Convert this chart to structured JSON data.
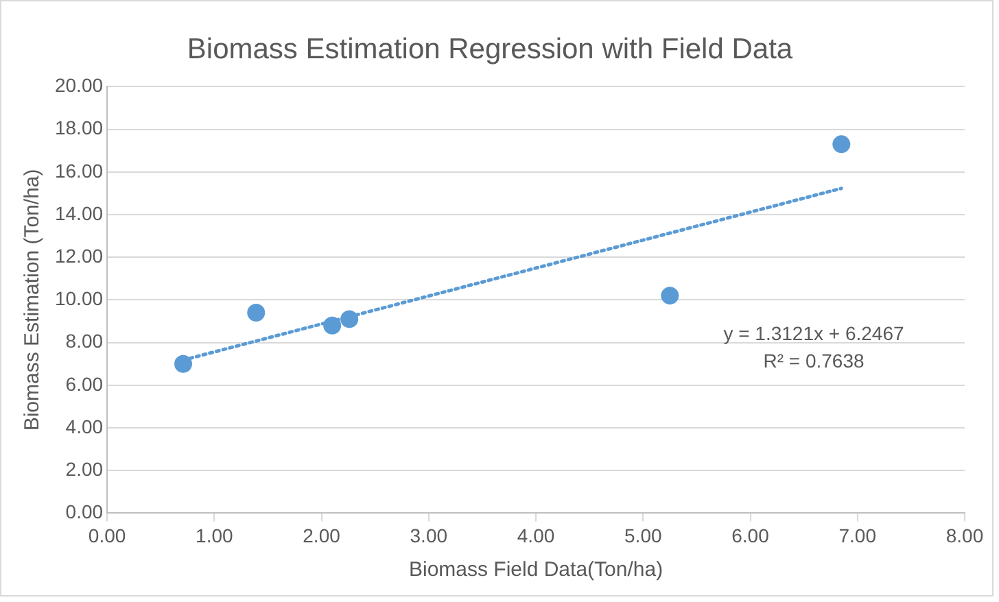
{
  "chart_data": {
    "type": "scatter",
    "title": "Biomass Estimation Regression with Field Data",
    "xlabel": "Biomass Field Data(Ton/ha)",
    "ylabel": "Biomass Estimation (Ton/ha)",
    "series": [
      {
        "color": "#5b9bd5",
        "x": [
          0.71,
          1.39,
          2.1,
          2.26,
          5.25,
          6.85
        ],
        "values": [
          7.0,
          9.4,
          8.8,
          9.1,
          10.2,
          17.3
        ],
        "marker": "circle"
      },
      {
        "type": "line",
        "color": "#5b9bd5",
        "x": [
          0.71,
          6.85
        ],
        "values": [
          7.18,
          15.23
        ],
        "line_style": "dotted",
        "marker": "none"
      }
    ],
    "xlim": [
      0,
      8
    ],
    "xticks": [
      {
        "value": 0,
        "label": "0.00"
      },
      {
        "value": 1,
        "label": "1.00"
      },
      {
        "value": 2,
        "label": "2.00"
      },
      {
        "value": 3,
        "label": "3.00"
      },
      {
        "value": 4,
        "label": "4.00"
      },
      {
        "value": 5,
        "label": "5.00"
      },
      {
        "value": 6,
        "label": "6.00"
      },
      {
        "value": 7,
        "label": "7.00"
      },
      {
        "value": 8,
        "label": "8.00"
      }
    ],
    "ylim": [
      0,
      20
    ],
    "yticks": [
      {
        "value": 0,
        "label": "0.00"
      },
      {
        "value": 2,
        "label": "2.00"
      },
      {
        "value": 4,
        "label": "4.00"
      },
      {
        "value": 6,
        "label": "6.00"
      },
      {
        "value": 8,
        "label": "8.00"
      },
      {
        "value": 10,
        "label": "10.00"
      },
      {
        "value": 12,
        "label": "12.00"
      },
      {
        "value": 14,
        "label": "14.00"
      },
      {
        "value": 16,
        "label": "16.00"
      },
      {
        "value": 18,
        "label": "18.00"
      },
      {
        "value": 20,
        "label": "20.00"
      }
    ],
    "grid": "y",
    "legend": false,
    "annotations": [
      "y = 1.3121x + 6.2467",
      "R² = 0.7638"
    ]
  }
}
